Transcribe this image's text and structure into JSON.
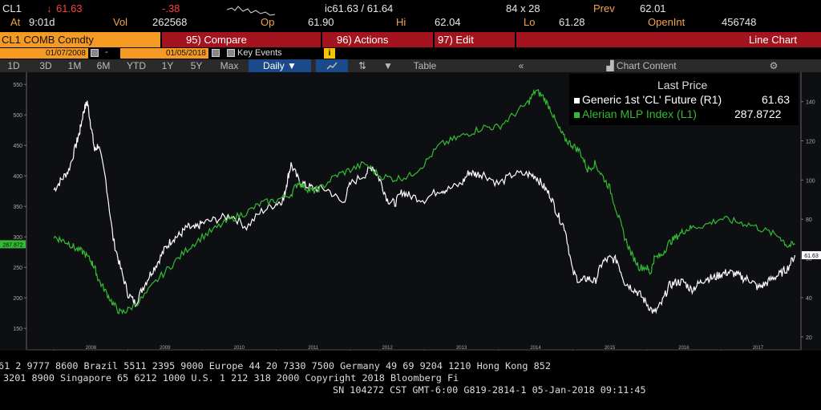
{
  "header": {
    "ticker": "CL1",
    "change_arrow": "↓",
    "last": "61.63",
    "change": "-.38",
    "at_label": "At",
    "time": "9:01d",
    "vol_label": "Vol",
    "vol": "262568",
    "op_label": "Op",
    "open": "61.90",
    "ic": "ic61.63 / 61.64",
    "hi_label": "Hi",
    "high": "62.04",
    "size": "84 x 28",
    "lo_label": "Lo",
    "low": "61.28",
    "prev_label": "Prev",
    "prev": "62.01",
    "openint_label": "OpenInt",
    "openint": "456748"
  },
  "toolbar": {
    "security": "CL1 COMB Comdty",
    "compare": "95) Compare",
    "actions": "96) Actions",
    "edit": "97) Edit",
    "chart_type": "Line Chart",
    "start_date": "01/07/2008",
    "end_date": "01/05/2018",
    "date_sep": "-",
    "key_events": "Key Events",
    "info_icon": "i",
    "periods": [
      "1D",
      "3D",
      "1M",
      "6M",
      "YTD",
      "1Y",
      "5Y",
      "Max"
    ],
    "frequency": "Daily ▼",
    "table": "Table",
    "collapse": "«",
    "chart_content": "Chart Content",
    "colors": {
      "accent": "#f59a23",
      "bar": "#a3141e",
      "selected": "#1b4a8a"
    }
  },
  "legend": {
    "title": "Last Price",
    "series": [
      {
        "name": "Generic 1st 'CL' Future  (R1)",
        "value": "61.63",
        "color": "#ffffff"
      },
      {
        "name": "Alerian MLP Index  (L1)",
        "value": "287.8722",
        "color": "#33bb33"
      }
    ]
  },
  "chart_data": {
    "type": "line",
    "left_axis": {
      "ticks": [
        150,
        200,
        250,
        300,
        350,
        400,
        450,
        500,
        550
      ],
      "ylim": [
        120,
        570
      ]
    },
    "right_axis": {
      "ticks": [
        20,
        40,
        60,
        80,
        100,
        120,
        140
      ],
      "ylim": [
        15,
        155
      ]
    },
    "x_labels": [
      "2008",
      "2009",
      "2010",
      "2011",
      "2012",
      "2013",
      "2014",
      "2015",
      "2016",
      "2017"
    ],
    "last_left_tag": "287.872",
    "last_right_tag": "61.63",
    "series": [
      {
        "name": "Generic 1st 'CL' Future",
        "axis": "right",
        "color": "#ffffff",
        "x": [
          2008.0,
          2008.1,
          2008.2,
          2008.3,
          2008.35,
          2008.4,
          2008.45,
          2008.5,
          2008.55,
          2008.6,
          2008.7,
          2008.8,
          2008.9,
          2009.0,
          2009.1,
          2009.2,
          2009.3,
          2009.4,
          2009.5,
          2009.6,
          2009.7,
          2009.8,
          2009.9,
          2010.0,
          2010.2,
          2010.4,
          2010.6,
          2010.8,
          2011.0,
          2011.1,
          2011.15,
          2011.2,
          2011.3,
          2011.4,
          2011.5,
          2011.7,
          2011.9,
          2012.0,
          2012.2,
          2012.3,
          2012.4,
          2012.5,
          2012.6,
          2012.7,
          2012.8,
          2013.0,
          2013.2,
          2013.3,
          2013.5,
          2013.6,
          2013.7,
          2013.8,
          2014.0,
          2014.2,
          2014.4,
          2014.5,
          2014.6,
          2014.7,
          2014.8,
          2014.9,
          2015.0,
          2015.1,
          2015.2,
          2015.3,
          2015.4,
          2015.5,
          2015.6,
          2015.7,
          2015.8,
          2015.9,
          2016.0,
          2016.1,
          2016.2,
          2016.3,
          2016.4,
          2016.5,
          2016.6,
          2016.7,
          2016.8,
          2016.9,
          2017.0,
          2017.1,
          2017.2,
          2017.3,
          2017.4,
          2017.5,
          2017.6,
          2017.7,
          2017.8,
          2017.9,
          2018.0
        ],
        "y": [
          95,
          100,
          105,
          118,
          125,
          135,
          140,
          128,
          115,
          118,
          100,
          70,
          55,
          42,
          37,
          45,
          52,
          58,
          65,
          70,
          72,
          76,
          75,
          78,
          80,
          82,
          76,
          84,
          88,
          90,
          100,
          108,
          100,
          97,
          96,
          95,
          88,
          98,
          103,
          107,
          100,
          90,
          88,
          94,
          92,
          90,
          95,
          95,
          98,
          104,
          103,
          103,
          98,
          103,
          103,
          102,
          97,
          92,
          82,
          75,
          53,
          48,
          50,
          48,
          58,
          60,
          59,
          48,
          45,
          42,
          37,
          32,
          37,
          46,
          48,
          48,
          44,
          47,
          50,
          50,
          52,
          53,
          52,
          50,
          49,
          45,
          47,
          50,
          52,
          55,
          61.63
        ]
      },
      {
        "name": "Alerian MLP Index",
        "axis": "left",
        "color": "#33bb33",
        "x": [
          2008.0,
          2008.1,
          2008.2,
          2008.3,
          2008.4,
          2008.5,
          2008.55,
          2008.6,
          2008.7,
          2008.8,
          2008.9,
          2009.0,
          2009.2,
          2009.4,
          2009.6,
          2009.8,
          2010.0,
          2010.2,
          2010.4,
          2010.6,
          2010.8,
          2011.0,
          2011.2,
          2011.3,
          2011.4,
          2011.5,
          2011.6,
          2011.8,
          2012.0,
          2012.2,
          2012.4,
          2012.6,
          2012.8,
          2013.0,
          2013.2,
          2013.4,
          2013.6,
          2013.8,
          2014.0,
          2014.2,
          2014.4,
          2014.5,
          2014.6,
          2014.7,
          2014.8,
          2014.9,
          2015.0,
          2015.1,
          2015.2,
          2015.3,
          2015.4,
          2015.5,
          2015.6,
          2015.7,
          2015.8,
          2015.9,
          2016.0,
          2016.05,
          2016.1,
          2016.2,
          2016.3,
          2016.4,
          2016.5,
          2016.6,
          2016.8,
          2017.0,
          2017.2,
          2017.4,
          2017.6,
          2017.8,
          2017.9,
          2018.0
        ],
        "y": [
          300,
          295,
          290,
          280,
          275,
          260,
          250,
          230,
          210,
          190,
          175,
          180,
          200,
          230,
          255,
          280,
          300,
          315,
          330,
          340,
          355,
          360,
          370,
          390,
          380,
          375,
          380,
          400,
          410,
          420,
          400,
          395,
          400,
          420,
          450,
          460,
          470,
          480,
          480,
          500,
          520,
          540,
          530,
          510,
          480,
          460,
          450,
          440,
          410,
          420,
          400,
          380,
          340,
          300,
          270,
          250,
          250,
          240,
          265,
          270,
          290,
          300,
          310,
          315,
          320,
          330,
          325,
          320,
          310,
          300,
          285,
          287.8722
        ]
      }
    ]
  },
  "footer": {
    "line1": "61 2 9777 8600 Brazil 5511 2395 9000 Europe 44 20 7330 7500 Germany 49 69 9204 1210 Hong Kong 852",
    "line2": "3201 8900       Singapore 65 6212 1000       U.S. 1 212 318 2000       Copyright 2018 Bloomberg Fi",
    "line3": "SN 104272 CST  GMT-6:00 G819-2814-1 05-Jan-2018 09:11:45"
  }
}
